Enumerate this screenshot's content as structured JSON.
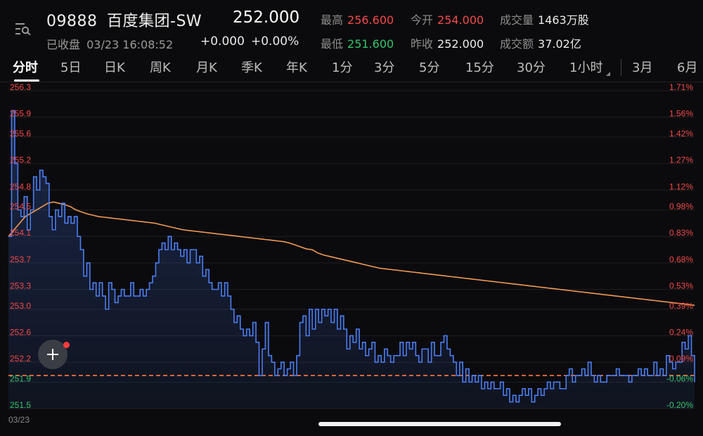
{
  "header": {
    "code": "09888",
    "name": "百度集团-SW",
    "price": "252.000",
    "status": "已收盘",
    "datetime": "03/23 16:08:52",
    "change": "+0.000",
    "change_pct": "+0.00%",
    "stats": {
      "high_label": "最高",
      "high": "256.600",
      "open_label": "今开",
      "open": "254.000",
      "volume_label": "成交量",
      "volume": "1463万股",
      "low_label": "最低",
      "low": "251.600",
      "prev_close_label": "昨收",
      "prev_close": "252.000",
      "turnover_label": "成交额",
      "turnover": "37.02亿"
    }
  },
  "tabs": [
    "分时",
    "5日",
    "日K",
    "周K",
    "月K",
    "季K",
    "年K",
    "1分",
    "3分",
    "5分",
    "15分",
    "30分",
    "1小时",
    "3月",
    "6月"
  ],
  "active_tab": "分时",
  "colors": {
    "price_line": "#4b7ef0",
    "avg_line": "#f09a55",
    "up": "#f04a4a",
    "down": "#34c46a",
    "prev_close_line": "#ff7a45"
  },
  "chart_data": {
    "type": "line",
    "date_label": "03/23",
    "prev_close": 252.0,
    "ylim": [
      251.5,
      256.3
    ],
    "y_ticks": [
      {
        "value": 256.3,
        "label": "256.3",
        "pct": "1.71%"
      },
      {
        "value": 255.9,
        "label": "255.9",
        "pct": "1.56%"
      },
      {
        "value": 255.6,
        "label": "255.6",
        "pct": "1.42%"
      },
      {
        "value": 255.2,
        "label": "255.2",
        "pct": "1.27%"
      },
      {
        "value": 254.8,
        "label": "254.8",
        "pct": "1.12%"
      },
      {
        "value": 254.5,
        "label": "254.5",
        "pct": "0.98%"
      },
      {
        "value": 254.1,
        "label": "254.1",
        "pct": "0.83%"
      },
      {
        "value": 253.7,
        "label": "253.7",
        "pct": "0.68%"
      },
      {
        "value": 253.3,
        "label": "253.3",
        "pct": "0.53%"
      },
      {
        "value": 253.0,
        "label": "253.0",
        "pct": "0.39%"
      },
      {
        "value": 252.6,
        "label": "252.6",
        "pct": "0.24%"
      },
      {
        "value": 252.2,
        "label": "252.2",
        "pct": "0.09%"
      },
      {
        "value": 251.9,
        "label": "251.9",
        "pct": "-0.06%"
      },
      {
        "value": 251.5,
        "label": "251.5",
        "pct": "-0.20%"
      }
    ],
    "series": [
      {
        "values": [
          254.1,
          256.0,
          255.2,
          254.5,
          254.4,
          254.7,
          254.2,
          254.5,
          255.0,
          254.8,
          255.1,
          255.0,
          254.9,
          254.4,
          254.2,
          254.5,
          254.4,
          254.6,
          254.3,
          254.4,
          254.3,
          254.4,
          254.1,
          253.9,
          253.5,
          253.7,
          253.3,
          253.4,
          253.2,
          253.4,
          253.2,
          253.0,
          253.4,
          253.3,
          253.1,
          253.2,
          253.3,
          253.2,
          253.2,
          253.4,
          253.2,
          253.2,
          253.3,
          253.2,
          253.3,
          253.4,
          253.5,
          253.7,
          253.9,
          254.0,
          253.9,
          254.1,
          253.9,
          254.0,
          253.9,
          253.8,
          253.9,
          253.7,
          253.9,
          253.9,
          253.7,
          253.8,
          253.5,
          253.6,
          253.4,
          253.3,
          253.3,
          253.4,
          253.2,
          253.4,
          253.2,
          253.0,
          252.8,
          252.9,
          252.7,
          252.6,
          252.7,
          252.6,
          252.8,
          252.5,
          252.0,
          252.4,
          252.8,
          252.3,
          252.2,
          252.0,
          252.1,
          252.2,
          252.0,
          252.1,
          252.2,
          252.0,
          252.3,
          252.8,
          252.9,
          252.6,
          253.0,
          252.7,
          253.0,
          252.8,
          253.0,
          252.9,
          253.0,
          252.8,
          253.0,
          252.7,
          252.9,
          252.7,
          252.4,
          252.6,
          252.5,
          252.7,
          252.4,
          252.5,
          252.3,
          252.4,
          252.5,
          252.2,
          252.3,
          252.2,
          252.4,
          252.3,
          252.2,
          252.3,
          252.3,
          252.5,
          252.3,
          252.5,
          252.4,
          252.5,
          252.3,
          252.2,
          252.4,
          252.4,
          252.2,
          252.5,
          252.3,
          252.3,
          252.5,
          252.6,
          252.4,
          252.3,
          252.2,
          252.0,
          252.2,
          251.9,
          252.1,
          251.9,
          252.0,
          251.9,
          252.0,
          251.8,
          251.9,
          251.8,
          251.9,
          251.8,
          251.8,
          251.9,
          251.7,
          251.8,
          251.6,
          251.7,
          251.6,
          251.7,
          251.8,
          251.7,
          251.8,
          251.6,
          251.7,
          251.8,
          251.7,
          251.8,
          251.9,
          251.8,
          251.9,
          251.9,
          251.8,
          251.8,
          252.0,
          252.1,
          251.9,
          252.0,
          252.0,
          252.1,
          252.0,
          252.2,
          252.0,
          251.9,
          252.0,
          251.9,
          251.9,
          252.0,
          252.0,
          252.0,
          252.1,
          252.0,
          252.0,
          252.0,
          251.9,
          252.0,
          252.0,
          252.1,
          252.0,
          252.1,
          252.0,
          252.0,
          252.2,
          252.0,
          252.1,
          252.0,
          252.3,
          252.2,
          252.1,
          252.2,
          252.2,
          252.5,
          252.4,
          252.6,
          252.3,
          251.9
        ],
        "color": "#4b7ef0"
      },
      {
        "values": [
          254.1,
          254.2,
          254.3,
          254.4,
          254.45,
          254.5,
          254.55,
          254.6,
          254.62,
          254.6,
          254.58,
          254.55,
          254.5,
          254.47,
          254.44,
          254.42,
          254.4,
          254.39,
          254.38,
          254.37,
          254.36,
          254.35,
          254.34,
          254.33,
          254.32,
          254.31,
          254.3,
          254.28,
          254.26,
          254.24,
          254.22,
          254.2,
          254.19,
          254.18,
          254.17,
          254.16,
          254.15,
          254.14,
          254.13,
          254.12,
          254.11,
          254.1,
          254.09,
          254.08,
          254.07,
          254.06,
          254.05,
          254.04,
          254.03,
          254.02,
          254.0,
          253.97,
          253.94,
          253.91,
          253.9,
          253.85,
          253.82,
          253.8,
          253.78,
          253.76,
          253.74,
          253.72,
          253.7,
          253.68,
          253.66,
          253.64,
          253.62,
          253.61,
          253.6,
          253.59,
          253.58,
          253.57,
          253.56,
          253.55,
          253.54,
          253.53,
          253.52,
          253.51,
          253.5,
          253.49,
          253.48,
          253.47,
          253.46,
          253.45,
          253.44,
          253.43,
          253.42,
          253.41,
          253.4,
          253.39,
          253.38,
          253.37,
          253.36,
          253.35,
          253.34,
          253.33,
          253.32,
          253.31,
          253.3,
          253.29,
          253.28,
          253.27,
          253.26,
          253.25,
          253.24,
          253.23,
          253.22,
          253.21,
          253.2,
          253.19,
          253.18,
          253.17,
          253.16,
          253.15,
          253.14,
          253.13,
          253.12,
          253.11,
          253.1,
          253.09,
          253.08,
          253.07,
          253.06
        ],
        "color": "#f09a55"
      }
    ]
  }
}
